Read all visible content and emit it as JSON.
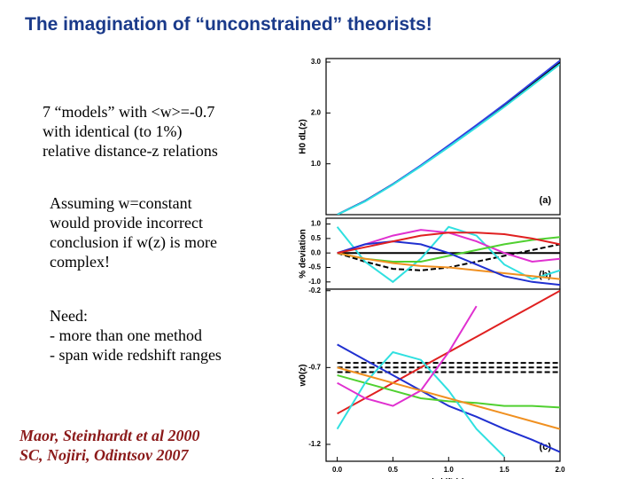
{
  "slide": {
    "title": "The  imagination of “unconstrained” theorists!",
    "block1": [
      "7 “models” with <w>=-0.7",
      "with identical (to 1%)",
      "relative distance-z relations"
    ],
    "block2": [
      "Assuming w=constant",
      "would provide incorrect",
      "conclusion if w(z) is more",
      "complex!"
    ],
    "block3": [
      "Need:",
      "- more than one method",
      "- span wide redshift ranges"
    ],
    "citations": [
      "Maor, Steinhardt et al 2000",
      "SC, Nojiri, Odintsov 2007"
    ]
  },
  "chart_data": [
    {
      "type": "line",
      "panel_label": "(a)",
      "ylabel": "H0 dL(z)",
      "x": [
        0,
        0.25,
        0.5,
        0.75,
        1.0,
        1.25,
        1.5,
        1.75,
        2.0
      ],
      "xlim": [
        -0.1,
        2.0
      ],
      "ylim": [
        0,
        3.07
      ],
      "yticks": [
        {
          "value": 1,
          "label": "1.0"
        },
        {
          "value": 2,
          "label": "2.0"
        },
        {
          "value": 3,
          "label": "3.0"
        }
      ],
      "series": [
        {
          "color": "#000000",
          "style": "solid",
          "values": [
            0,
            0.27,
            0.6,
            0.96,
            1.35,
            1.74,
            2.15,
            2.58,
            3.0
          ]
        },
        {
          "color": "#3040e0",
          "style": "solid",
          "values": [
            0,
            0.27,
            0.6,
            0.97,
            1.36,
            1.76,
            2.17,
            2.6,
            3.03
          ]
        },
        {
          "color": "#30e0e0",
          "style": "solid",
          "values": [
            0,
            0.26,
            0.59,
            0.95,
            1.33,
            1.72,
            2.12,
            2.54,
            2.96
          ]
        }
      ]
    },
    {
      "type": "line",
      "panel_label": "(b)",
      "ylabel": "% deviation",
      "x": [
        0,
        0.25,
        0.5,
        0.75,
        1.0,
        1.25,
        1.5,
        1.75,
        2.0
      ],
      "xlim": [
        -0.1,
        2.0
      ],
      "ylim": [
        -1.25,
        1.2
      ],
      "yticks": [
        {
          "value": 1,
          "label": "1.0"
        },
        0.5,
        {
          "value": 0,
          "label": "0.0"
        },
        -0.5,
        {
          "value": -1,
          "label": "-1.0"
        }
      ],
      "series": [
        {
          "color": "#000000",
          "style": "solid",
          "values": [
            0,
            0,
            0,
            0,
            0,
            0,
            0,
            0,
            0
          ]
        },
        {
          "color": "#000000",
          "style": "dashed",
          "values": [
            0,
            -0.3,
            -0.55,
            -0.6,
            -0.5,
            -0.3,
            -0.1,
            0.1,
            0.3
          ]
        },
        {
          "color": "#30e0e0",
          "style": "solid",
          "values": [
            0.9,
            -0.3,
            -1.0,
            -0.2,
            0.9,
            0.6,
            -0.4,
            -0.9,
            -0.6
          ]
        },
        {
          "color": "#e030d0",
          "style": "solid",
          "values": [
            0,
            0.3,
            0.6,
            0.8,
            0.7,
            0.4,
            0,
            -0.3,
            -0.2
          ]
        },
        {
          "color": "#50d030",
          "style": "solid",
          "values": [
            0,
            -0.2,
            -0.3,
            -0.3,
            -0.1,
            0.1,
            0.3,
            0.45,
            0.55
          ]
        },
        {
          "color": "#f09020",
          "style": "solid",
          "values": [
            0,
            -0.2,
            -0.35,
            -0.45,
            -0.5,
            -0.6,
            -0.7,
            -0.8,
            -0.9
          ]
        },
        {
          "color": "#2030d0",
          "style": "solid",
          "values": [
            0,
            0.3,
            0.4,
            0.3,
            0,
            -0.4,
            -0.8,
            -1.0,
            -1.1
          ]
        },
        {
          "color": "#e02020",
          "style": "solid",
          "values": [
            0,
            0.2,
            0.4,
            0.6,
            0.7,
            0.7,
            0.65,
            0.5,
            0.3
          ]
        }
      ]
    },
    {
      "type": "line",
      "panel_label": "(c)",
      "ylabel": "w0(z)",
      "xlabel": "red shift (z)",
      "x": [
        0,
        0.25,
        0.5,
        0.75,
        1.0,
        1.25,
        1.5,
        1.75,
        2.0
      ],
      "xlim": [
        -0.1,
        2.0
      ],
      "ylim": [
        -1.31,
        -0.19
      ],
      "xticks": [
        {
          "value": 0,
          "label": "0.0"
        },
        0.5,
        {
          "value": 1,
          "label": "1.0"
        },
        1.5,
        {
          "value": 2,
          "label": "2.0"
        }
      ],
      "yticks": [
        -0.2,
        -0.7,
        -1.2
      ],
      "series": [
        {
          "color": "#000000",
          "style": "dashed",
          "values": [
            -0.7,
            -0.7,
            -0.7,
            -0.7,
            -0.7,
            -0.7,
            -0.7,
            -0.7,
            -0.7
          ]
        },
        {
          "color": "#000000",
          "style": "dashed",
          "values": [
            -0.67,
            -0.67,
            -0.67,
            -0.67,
            -0.67,
            -0.67,
            -0.67,
            -0.67,
            -0.67
          ]
        },
        {
          "color": "#000000",
          "style": "dashed",
          "values": [
            -0.73,
            -0.73,
            -0.73,
            -0.73,
            -0.73,
            -0.73,
            -0.73,
            -0.73,
            -0.73
          ]
        },
        {
          "color": "#e02020",
          "style": "solid",
          "values": [
            -1.0,
            -0.9,
            -0.8,
            -0.7,
            -0.6,
            -0.5,
            -0.4,
            -0.3,
            -0.2
          ]
        },
        {
          "color": "#2030d0",
          "style": "solid",
          "values": [
            -0.55,
            -0.65,
            -0.75,
            -0.85,
            -0.95,
            -1.02,
            -1.1,
            -1.17,
            -1.25
          ]
        },
        {
          "color": "#50d030",
          "style": "solid",
          "values": [
            -0.75,
            -0.8,
            -0.85,
            -0.9,
            -0.92,
            -0.93,
            -0.95,
            -0.95,
            -0.96
          ]
        },
        {
          "color": "#30e0e0",
          "style": "solid",
          "values": [
            -1.1,
            -0.8,
            -0.6,
            -0.65,
            -0.85,
            -1.1,
            -1.28,
            null,
            null
          ]
        },
        {
          "color": "#e030d0",
          "style": "solid",
          "values": [
            -0.8,
            -0.9,
            -0.95,
            -0.85,
            -0.6,
            -0.3,
            null,
            null,
            null
          ]
        },
        {
          "color": "#f09020",
          "style": "solid",
          "values": [
            -0.7,
            -0.75,
            -0.8,
            -0.85,
            -0.9,
            -0.95,
            -1.0,
            -1.05,
            -1.1
          ]
        }
      ]
    }
  ]
}
